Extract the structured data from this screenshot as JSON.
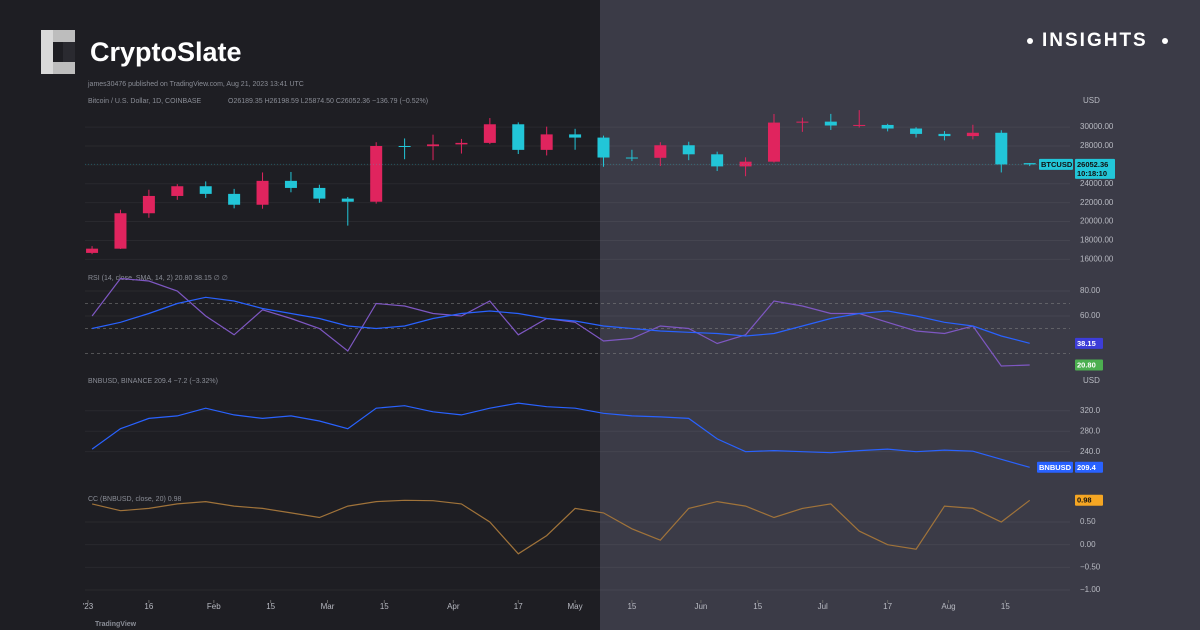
{
  "header": {
    "brand": "CryptoSlate",
    "tag": "INSIGHTS",
    "attribution": "james30476 published on TradingView.com, Aug 21, 2023 13:41 UTC",
    "footer": "TradingView"
  },
  "chart_data": [
    {
      "type": "candlestick",
      "title": "Bitcoin / U.S. Dollar, 1D, COINBASE",
      "subtitle": "O26189.35 H26198.59 L25874.50 C26052.36 −136.79 (−0.52%)",
      "currency": "USD",
      "x": [
        "2023-01-02",
        "2023-01-09",
        "2023-01-16",
        "2023-01-23",
        "2023-01-30",
        "2023-02-06",
        "2023-02-13",
        "2023-02-20",
        "2023-02-27",
        "2023-03-06",
        "2023-03-13",
        "2023-03-20",
        "2023-03-27",
        "2023-04-03",
        "2023-04-10",
        "2023-04-17",
        "2023-04-24",
        "2023-05-01",
        "2023-05-08",
        "2023-05-15",
        "2023-05-22",
        "2023-05-29",
        "2023-06-05",
        "2023-06-12",
        "2023-06-19",
        "2023-06-26",
        "2023-07-03",
        "2023-07-10",
        "2023-07-17",
        "2023-07-24",
        "2023-07-31",
        "2023-08-07",
        "2023-08-14",
        "2023-08-21"
      ],
      "open": [
        16680,
        17130,
        20880,
        22710,
        23740,
        22930,
        21780,
        24310,
        23560,
        22430,
        22100,
        28000,
        27980,
        28170,
        28330,
        30300,
        27590,
        29230,
        28890,
        26780,
        26750,
        28080,
        27120,
        25840,
        26340,
        30480,
        30580,
        30170,
        30230,
        29850,
        29280,
        29050,
        29400,
        26189.35
      ],
      "high": [
        17400,
        21250,
        23370,
        23960,
        24250,
        23460,
        25200,
        25250,
        23900,
        22600,
        28400,
        28800,
        29200,
        28750,
        30960,
        30500,
        30050,
        29820,
        29100,
        27600,
        28400,
        28450,
        27400,
        26800,
        31390,
        31000,
        31400,
        31800,
        30350,
        29990,
        29580,
        30250,
        29670,
        26198.59
      ],
      "low": [
        16550,
        17100,
        20400,
        22300,
        22500,
        21400,
        21360,
        23100,
        21980,
        19570,
        21900,
        26600,
        26500,
        27200,
        28200,
        27150,
        27000,
        27600,
        25800,
        26400,
        25880,
        26500,
        25350,
        24800,
        26250,
        29500,
        29700,
        29950,
        29550,
        28900,
        28600,
        28700,
        25200,
        25874.5
      ],
      "close": [
        17130,
        20880,
        22710,
        23740,
        22930,
        21780,
        24310,
        23560,
        22430,
        22100,
        28000,
        27980,
        28170,
        28330,
        30300,
        27590,
        29230,
        28890,
        26780,
        26750,
        28080,
        27120,
        25840,
        26340,
        30480,
        30580,
        30170,
        30230,
        29850,
        29280,
        29050,
        29400,
        26050,
        26052.36
      ],
      "up_color": "#e0245e",
      "down_color": "#22c6d8",
      "xlim": [
        "2023-01-01",
        "2023-08-26"
      ],
      "ylim": [
        15400,
        33400
      ],
      "yticks": [
        {
          "value": 16000,
          "label": "16000.00"
        },
        {
          "value": 18000,
          "label": "18000.00"
        },
        {
          "value": 20000,
          "label": "20000.00"
        },
        {
          "value": 22000,
          "label": "22000.00"
        },
        {
          "value": 24000,
          "label": "24000.00"
        },
        {
          "value": 26000,
          "label": "26000.00"
        },
        {
          "value": 28000,
          "label": "28000.00"
        },
        {
          "value": 30000,
          "label": "30000.00"
        }
      ],
      "last_label": {
        "name": "BTCUSD",
        "price": "26052.36",
        "countdown": "10:18:10"
      },
      "grid": true
    },
    {
      "type": "line",
      "title": "RSI (14, close, SMA, 14, 2) 20.80 38.15 ∅ ∅",
      "x": [
        "2023-01-02",
        "2023-01-09",
        "2023-01-16",
        "2023-01-23",
        "2023-01-30",
        "2023-02-06",
        "2023-02-13",
        "2023-02-20",
        "2023-02-27",
        "2023-03-06",
        "2023-03-13",
        "2023-03-20",
        "2023-03-27",
        "2023-04-03",
        "2023-04-10",
        "2023-04-17",
        "2023-04-24",
        "2023-05-01",
        "2023-05-08",
        "2023-05-15",
        "2023-05-22",
        "2023-05-29",
        "2023-06-05",
        "2023-06-12",
        "2023-06-19",
        "2023-06-26",
        "2023-07-03",
        "2023-07-10",
        "2023-07-17",
        "2023-07-24",
        "2023-07-31",
        "2023-08-07",
        "2023-08-14",
        "2023-08-21"
      ],
      "series": [
        {
          "color": "#7e57c2",
          "price_label": "20.80",
          "label_color": "#4caf50",
          "values": [
            60,
            90,
            88,
            80,
            60,
            45,
            65,
            58,
            50,
            32,
            70,
            68,
            62,
            60,
            72,
            45,
            58,
            55,
            40,
            42,
            52,
            50,
            38,
            45,
            72,
            68,
            62,
            62,
            55,
            48,
            46,
            52,
            20,
            20.8
          ]
        },
        {
          "color": "#2962ff",
          "price_label": "38.15",
          "label_color": "#3d3dd8",
          "values": [
            50,
            55,
            62,
            70,
            75,
            72,
            66,
            62,
            58,
            52,
            50,
            52,
            58,
            62,
            64,
            62,
            58,
            56,
            52,
            50,
            48,
            47,
            46,
            44,
            46,
            52,
            58,
            62,
            64,
            60,
            55,
            52,
            44,
            38.15
          ]
        }
      ],
      "band_levels": [
        70,
        50,
        30
      ],
      "xlim": [
        "2023-01-01",
        "2023-08-26"
      ],
      "ylim": [
        16.8,
        95.2
      ],
      "yticks": [
        {
          "value": 60,
          "label": "60.00"
        },
        {
          "value": 80,
          "label": "80.00"
        }
      ],
      "grid": true
    },
    {
      "type": "line",
      "title": "BNBUSD, BINANCE 209.4 −7.2 (−3.32%)",
      "currency": "USD",
      "x": [
        "2023-01-02",
        "2023-01-09",
        "2023-01-16",
        "2023-01-23",
        "2023-01-30",
        "2023-02-06",
        "2023-02-13",
        "2023-02-20",
        "2023-02-27",
        "2023-03-06",
        "2023-03-13",
        "2023-03-20",
        "2023-03-27",
        "2023-04-03",
        "2023-04-10",
        "2023-04-17",
        "2023-04-24",
        "2023-05-01",
        "2023-05-08",
        "2023-05-15",
        "2023-05-22",
        "2023-05-29",
        "2023-06-05",
        "2023-06-12",
        "2023-06-19",
        "2023-06-26",
        "2023-07-03",
        "2023-07-10",
        "2023-07-17",
        "2023-07-24",
        "2023-07-31",
        "2023-08-07",
        "2023-08-14",
        "2023-08-21"
      ],
      "series": [
        {
          "name": "BNBUSD",
          "color": "#2962ff",
          "price_label": "209.4",
          "label_color": "#2962ff",
          "values": [
            245,
            285,
            305,
            310,
            325,
            312,
            305,
            310,
            300,
            285,
            325,
            330,
            318,
            312,
            325,
            335,
            328,
            325,
            315,
            310,
            308,
            305,
            265,
            240,
            242,
            240,
            238,
            242,
            245,
            240,
            243,
            241,
            225,
            209.4
          ]
        }
      ],
      "xlim": [
        "2023-01-01",
        "2023-08-26"
      ],
      "ylim": [
        165,
        390
      ],
      "yticks": [
        {
          "value": 240,
          "label": "240.0"
        },
        {
          "value": 280,
          "label": "280.0"
        },
        {
          "value": 320,
          "label": "320.0"
        }
      ],
      "grid": true
    },
    {
      "type": "line",
      "title": "CC (BNBUSD, close, 20) 0.98",
      "x": [
        "2023-01-02",
        "2023-01-09",
        "2023-01-16",
        "2023-01-23",
        "2023-01-30",
        "2023-02-06",
        "2023-02-13",
        "2023-02-20",
        "2023-02-27",
        "2023-03-06",
        "2023-03-13",
        "2023-03-20",
        "2023-03-27",
        "2023-04-03",
        "2023-04-10",
        "2023-04-17",
        "2023-04-24",
        "2023-05-01",
        "2023-05-08",
        "2023-05-15",
        "2023-05-22",
        "2023-05-29",
        "2023-06-05",
        "2023-06-12",
        "2023-06-19",
        "2023-06-26",
        "2023-07-03",
        "2023-07-10",
        "2023-07-17",
        "2023-07-24",
        "2023-07-31",
        "2023-08-07",
        "2023-08-14",
        "2023-08-21"
      ],
      "series": [
        {
          "color": "#a0733a",
          "price_label": "0.98",
          "label_color": "#f5a623",
          "values": [
            0.9,
            0.75,
            0.8,
            0.9,
            0.95,
            0.85,
            0.8,
            0.7,
            0.6,
            0.85,
            0.95,
            0.98,
            0.97,
            0.9,
            0.5,
            -0.2,
            0.2,
            0.8,
            0.7,
            0.35,
            0.1,
            0.8,
            0.95,
            0.85,
            0.6,
            0.8,
            0.9,
            0.3,
            0.0,
            -0.1,
            0.85,
            0.8,
            0.5,
            0.98
          ]
        }
      ],
      "xlim": [
        "2023-01-01",
        "2023-08-26"
      ],
      "ylim": [
        -1.22,
        1.14
      ],
      "yticks": [
        {
          "value": -1,
          "label": "−1.00"
        },
        {
          "value": -0.5,
          "label": "−0.50"
        },
        {
          "value": 0,
          "label": "0.00"
        },
        {
          "value": 0.5,
          "label": "0.50"
        }
      ],
      "xticks": [
        {
          "value": "2023-01-01",
          "label": "'23"
        },
        {
          "value": "2023-01-16",
          "label": "16"
        },
        {
          "value": "2023-02-01",
          "label": "Feb"
        },
        {
          "value": "2023-02-15",
          "label": "15"
        },
        {
          "value": "2023-03-01",
          "label": "Mar"
        },
        {
          "value": "2023-03-15",
          "label": "15"
        },
        {
          "value": "2023-04-01",
          "label": "Apr"
        },
        {
          "value": "2023-04-17",
          "label": "17"
        },
        {
          "value": "2023-05-01",
          "label": "May"
        },
        {
          "value": "2023-05-15",
          "label": "15"
        },
        {
          "value": "2023-06-01",
          "label": "Jun"
        },
        {
          "value": "2023-06-15",
          "label": "15"
        },
        {
          "value": "2023-07-01",
          "label": "Jul"
        },
        {
          "value": "2023-07-17",
          "label": "17"
        },
        {
          "value": "2023-08-01",
          "label": "Aug"
        },
        {
          "value": "2023-08-15",
          "label": "15"
        }
      ],
      "grid": true
    }
  ]
}
